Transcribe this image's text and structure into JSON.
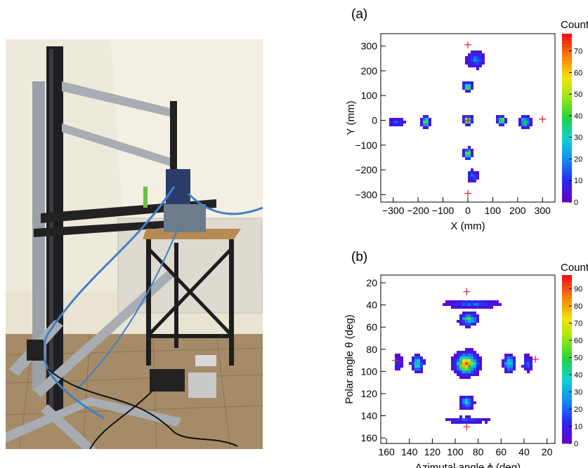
{
  "photo": {
    "description_icon": "photo-icon"
  },
  "chart_data": [
    {
      "type": "heatmap",
      "panel_label": "(a)",
      "title": "",
      "xlabel": "X (mm)",
      "ylabel": "Y (mm)",
      "xlim": [
        -350,
        350
      ],
      "ylim": [
        -330,
        350
      ],
      "xticks": [
        -300,
        -200,
        -100,
        0,
        100,
        200,
        300
      ],
      "xtick_labels": [
        "−300",
        "−200",
        "−100",
        "0",
        "100",
        "200",
        "300"
      ],
      "yticks": [
        -300,
        -200,
        -100,
        0,
        100,
        200,
        300
      ],
      "ytick_labels": [
        "−300",
        "−200",
        "−100",
        "0",
        "100",
        "200",
        "300"
      ],
      "colorbar": {
        "label": "Counts",
        "max": 78,
        "ticks": [
          0,
          10,
          20,
          30,
          40,
          50,
          60,
          70
        ]
      },
      "clusters": [
        {
          "x": 0,
          "y": 0,
          "peak": 62,
          "sx": 9,
          "sy": 9
        },
        {
          "x": 0,
          "y": 135,
          "peak": 48,
          "sx": 10,
          "sy": 9
        },
        {
          "x": 0,
          "y": -135,
          "peak": 48,
          "sx": 9,
          "sy": 11
        },
        {
          "x": 135,
          "y": 0,
          "peak": 48,
          "sx": 9,
          "sy": 10
        },
        {
          "x": -170,
          "y": -5,
          "peak": 42,
          "sx": 8,
          "sy": 12
        },
        {
          "x": 30,
          "y": 245,
          "peak": 18,
          "sx": 20,
          "sy": 18
        },
        {
          "x": 20,
          "y": -225,
          "peak": 14,
          "sx": 14,
          "sy": 14
        },
        {
          "x": 230,
          "y": -5,
          "peak": 32,
          "sx": 12,
          "sy": 14
        },
        {
          "x": -285,
          "y": -10,
          "peak": 14,
          "sx": 18,
          "sy": 10
        }
      ],
      "markers": [
        {
          "x": 0,
          "y": 305
        },
        {
          "x": 0,
          "y": -295
        },
        {
          "x": 300,
          "y": 5
        },
        {
          "x": 0,
          "y": 0
        }
      ],
      "marker_color": "#e0202a"
    },
    {
      "type": "heatmap",
      "panel_label": "(b)",
      "title": "",
      "xlabel": "Azimutal angle ϕ (deg)",
      "ylabel": "Polar angle θ (deg)",
      "xlim": [
        165,
        13
      ],
      "ylim": [
        165,
        13
      ],
      "xticks": [
        160,
        140,
        120,
        100,
        80,
        60,
        40,
        20
      ],
      "yticks": [
        20,
        40,
        60,
        80,
        100,
        120,
        140,
        160
      ],
      "colorbar": {
        "label": "Counts",
        "max": 98,
        "ticks": [
          0,
          10,
          20,
          30,
          40,
          50,
          60,
          70,
          80,
          90
        ]
      },
      "clusters": [
        {
          "x": 90,
          "y": 93,
          "peak": 85,
          "sx": 5,
          "sy": 5
        },
        {
          "x": 88,
          "y": 53,
          "peak": 45,
          "sx": 4,
          "sy": 3
        },
        {
          "x": 90,
          "y": 128,
          "peak": 42,
          "sx": 3,
          "sy": 3
        },
        {
          "x": 133,
          "y": 93,
          "peak": 45,
          "sx": 2.5,
          "sy": 4
        },
        {
          "x": 53,
          "y": 93,
          "peak": 45,
          "sx": 2.5,
          "sy": 4
        },
        {
          "x": 85,
          "y": 39,
          "peak": 20,
          "sx": 12,
          "sy": 2
        },
        {
          "x": 90,
          "y": 144,
          "peak": 18,
          "sx": 10,
          "sy": 1.5
        },
        {
          "x": 37,
          "y": 93,
          "peak": 22,
          "sx": 2,
          "sy": 4
        },
        {
          "x": 150,
          "y": 92,
          "peak": 15,
          "sx": 2,
          "sy": 4
        }
      ],
      "markers": [
        {
          "x": 90,
          "y": 28
        },
        {
          "x": 90,
          "y": 150
        },
        {
          "x": 30,
          "y": 89
        },
        {
          "x": 152,
          "y": 90
        }
      ],
      "marker_color": "#e0202a"
    }
  ]
}
